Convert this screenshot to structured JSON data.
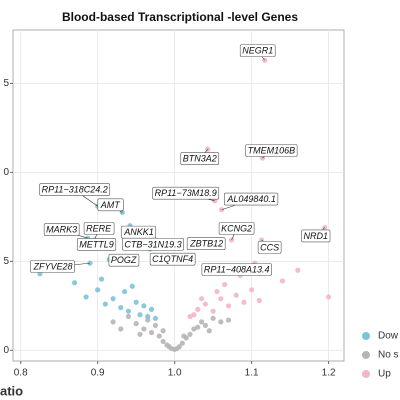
{
  "chart_data": {
    "type": "scatter",
    "title": "Blood-based Transcriptional -level Genes",
    "x_label": "atio",
    "xlim": [
      0.79,
      1.22
    ],
    "xticks": [
      0.8,
      0.9,
      {
        "value": 1.0,
        "label": "1.0"
      },
      1.1,
      1.2
    ],
    "ylim": [
      -0.6,
      18
    ],
    "yticks": [
      0,
      5,
      {
        "value": 10,
        "label": "0"
      },
      {
        "value": 15,
        "label": "5"
      }
    ],
    "grid": true,
    "legend": "right",
    "series": [
      {
        "name": "Dow",
        "color": "#7dc3d8",
        "x": [
          0.825,
          0.87,
          0.885,
          0.9,
          0.91,
          0.92,
          0.93,
          0.935,
          0.94,
          0.95,
          0.955,
          0.96,
          0.965,
          0.97,
          0.975,
          0.905,
          0.945,
          0.915,
          0.9,
          0.932,
          0.887,
          0.896,
          0.942,
          0.918,
          0.968,
          0.89,
          0.926
        ],
        "y": [
          4.3,
          3.8,
          3.0,
          3.4,
          2.6,
          2.9,
          2.4,
          3.3,
          2.2,
          2.7,
          2.0,
          2.5,
          1.9,
          2.3,
          1.8,
          4.0,
          3.6,
          5.1,
          8.1,
          7.75,
          6.3,
          6.2,
          7.0,
          5.8,
          5.7,
          4.9,
          5.2
        ],
        "labels": [
          null,
          null,
          null,
          null,
          null,
          null,
          null,
          null,
          null,
          null,
          null,
          null,
          null,
          null,
          null,
          null,
          null,
          null,
          "RP11−318C24.2",
          "AMT",
          "MARK3",
          "RERE",
          "ANKK1",
          "METTL9",
          "CTB−31N19.3",
          "ZFYVE28",
          "POGZ"
        ]
      },
      {
        "name": "No s",
        "color": "#b5b5b5",
        "x": [
          0.92,
          0.94,
          0.95,
          0.96,
          0.965,
          0.97,
          0.975,
          0.98,
          0.985,
          0.99,
          0.993,
          0.996,
          1.0,
          1.003,
          1.006,
          1.01,
          1.015,
          1.02,
          1.025,
          1.03,
          1.035,
          1.04,
          1.05,
          1.06,
          1.07,
          0.93,
          0.955,
          0.985,
          1.012,
          1.045
        ],
        "y": [
          1.6,
          1.9,
          1.5,
          1.2,
          1.7,
          1.0,
          1.4,
          0.8,
          0.5,
          0.3,
          0.2,
          0.1,
          0.05,
          0.1,
          0.2,
          0.4,
          0.7,
          0.9,
          1.2,
          1.3,
          1.6,
          1.4,
          1.8,
          1.6,
          1.7,
          1.2,
          0.9,
          1.1,
          0.8,
          1.1
        ]
      },
      {
        "name": "Up",
        "color": "#f2b6c6",
        "x": [
          1.02,
          1.03,
          1.04,
          1.05,
          1.06,
          1.07,
          1.08,
          1.09,
          1.1,
          1.11,
          1.025,
          1.035,
          1.055,
          1.065,
          1.085,
          1.14,
          1.16,
          1.2,
          1.117,
          1.114,
          1.043,
          1.052,
          1.061,
          1.074,
          1.039,
          1.113,
          1.195,
          1.013,
          1.104
        ],
        "y": [
          1.9,
          2.3,
          2.6,
          2.2,
          2.9,
          2.5,
          3.1,
          2.7,
          3.4,
          2.8,
          2.0,
          2.9,
          3.3,
          3.7,
          4.2,
          3.9,
          4.5,
          3.0,
          16.3,
          10.8,
          11.3,
          8.4,
          7.9,
          6.2,
          5.9,
          6.2,
          6.9,
          5.2,
          4.9
        ],
        "labels": [
          null,
          null,
          null,
          null,
          null,
          null,
          null,
          null,
          null,
          null,
          null,
          null,
          null,
          null,
          null,
          null,
          null,
          null,
          "NEGR1",
          "TMEM106B",
          "BTN3A2",
          "RP11−73M18.9",
          "AL049840.1",
          "KCNG2",
          "ZBTB12",
          "CCS",
          "NRD1",
          "C1QTNF4",
          "RP11−408A13.4"
        ]
      }
    ]
  }
}
